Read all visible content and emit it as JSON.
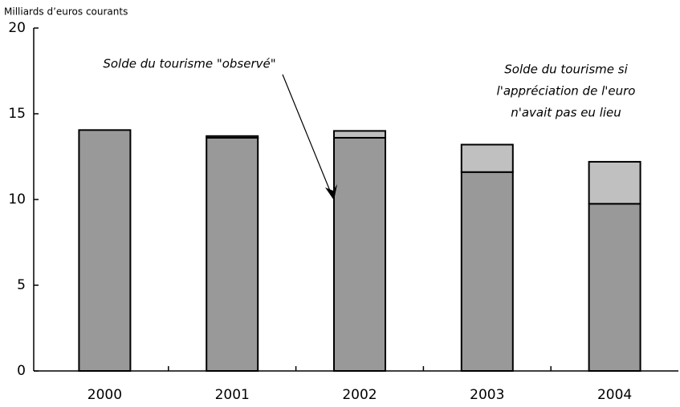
{
  "chart_data": {
    "type": "stacked-bar",
    "y_axis_label": "Milliards d’euros courants",
    "categories": [
      "2000",
      "2001",
      "2002",
      "2003",
      "2004"
    ],
    "series": [
      {
        "color": "#999999",
        "values": [
          14.05,
          13.6,
          13.6,
          11.6,
          9.75
        ]
      },
      {
        "color": "#c0c0c0",
        "values": [
          0,
          0.1,
          0.4,
          1.6,
          2.45
        ]
      }
    ],
    "annotations": [
      {
        "lines": [
          "Solde du tourisme \"observé\""
        ]
      },
      {
        "lines": [
          "Solde du tourisme si",
          "l'appréciation de l'euro",
          "n'avait pas eu lieu"
        ]
      }
    ],
    "ylim": [
      0,
      20
    ],
    "yticks": [
      0,
      5,
      10,
      15,
      20
    ]
  }
}
